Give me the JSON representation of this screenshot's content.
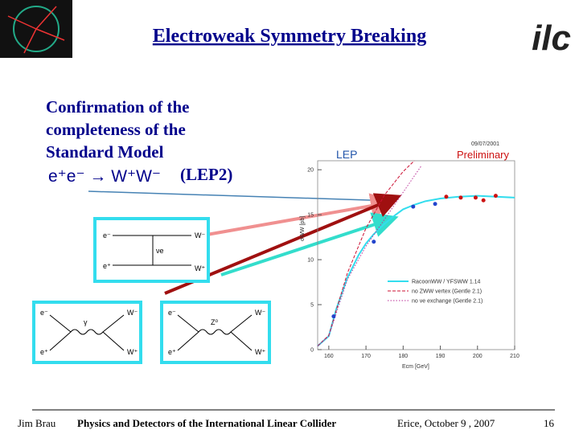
{
  "header": {
    "title": "Electroweak Symmetry Breaking",
    "logo": "ilc"
  },
  "body": {
    "lines": [
      "Confirmation of the",
      "completeness of the",
      "Standard Model"
    ],
    "process": "e⁺e⁻ → W⁺W⁻",
    "tag": "(LEP2)"
  },
  "diagrams": [
    {
      "labels": [
        "e⁻",
        "e⁺",
        "νe",
        "W⁻",
        "W⁺"
      ]
    },
    {
      "labels": [
        "e⁻",
        "e⁺",
        "γ",
        "W⁻",
        "W⁺"
      ]
    },
    {
      "labels": [
        "e⁻",
        "e⁺",
        "Z⁰",
        "W⁻",
        "W⁺"
      ]
    }
  ],
  "chart_data": {
    "type": "line",
    "title": "LEP",
    "subtitle": "Preliminary",
    "date": "09/07/2001",
    "y_label": "σWW [pb]",
    "x_label": "Ecm [GeV]",
    "xlim": [
      157,
      210
    ],
    "xticks": [
      160,
      170,
      180,
      190,
      200,
      210
    ],
    "ylim": [
      0,
      21
    ],
    "yticks": [
      0,
      5,
      10,
      15,
      20
    ],
    "points": {
      "x": [
        161.3,
        172.1,
        182.7,
        188.6,
        191.6,
        195.5,
        199.5,
        201.6,
        204.9
      ],
      "values": [
        3.7,
        12.0,
        15.9,
        16.2,
        17.0,
        16.9,
        16.9,
        16.6,
        17.1
      ],
      "colors": [
        "#2244cc",
        "#2244cc",
        "#2244cc",
        "#2244cc",
        "#cc1111",
        "#cc1111",
        "#cc1111",
        "#cc1111",
        "#cc1111"
      ]
    },
    "series": [
      {
        "name": "RacoonWW / YFSWW 1.14",
        "color": "#33ddee",
        "x": [
          157,
          160,
          162,
          165,
          168,
          170,
          172,
          175,
          178,
          180,
          183,
          186,
          190,
          195,
          200,
          205,
          210
        ],
        "values": [
          0.4,
          1.5,
          4.5,
          8.0,
          10.5,
          11.8,
          12.8,
          14.0,
          15.0,
          15.6,
          16.1,
          16.5,
          16.8,
          17.0,
          17.1,
          17.0,
          16.9
        ]
      },
      {
        "name": "no ZWW vertex (Gentle 2.1)",
        "color": "#cc1133",
        "x": [
          157,
          160,
          165,
          170,
          175,
          180,
          183
        ],
        "values": [
          0.4,
          1.6,
          8.5,
          13.5,
          17.2,
          19.8,
          21
        ]
      },
      {
        "name": "no νe exchange (Gentle 2.1)",
        "color": "#bb3399",
        "x": [
          157,
          160,
          165,
          170,
          175,
          180,
          185
        ],
        "values": [
          0.4,
          1.5,
          7.8,
          11.5,
          14.5,
          17.5,
          20.5
        ]
      }
    ]
  },
  "footer": {
    "author": "Jim Brau",
    "talk": "Physics and Detectors of the International Linear Collider",
    "venue": "Erice, October 9 , 2007",
    "page": "16"
  }
}
